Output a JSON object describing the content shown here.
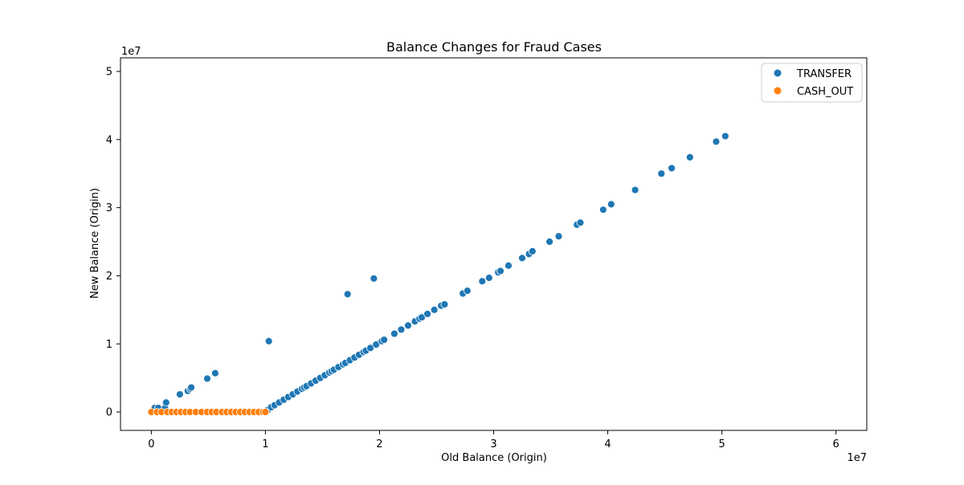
{
  "chart_data": {
    "type": "scatter",
    "title": "Balance Changes for Fraud Cases",
    "xlabel": "Old Balance (Origin)",
    "ylabel": "New Balance (Origin)",
    "x_scale_label": "1e7",
    "y_scale_label": "1e7",
    "xlim": [
      -0.27,
      6.27
    ],
    "ylim": [
      -0.27,
      5.2
    ],
    "x_ticks": [
      0,
      1,
      2,
      3,
      4,
      5,
      6
    ],
    "y_ticks": [
      0,
      1,
      2,
      3,
      4,
      5
    ],
    "tick_labels_x": [
      "0",
      "1",
      "2",
      "3",
      "4",
      "5",
      "6"
    ],
    "tick_labels_y": [
      "0",
      "1",
      "2",
      "3",
      "4",
      "5"
    ],
    "grid": false,
    "legend_position": "top-right",
    "units_note": "values in units of 1e7",
    "series": [
      {
        "name": "TRANSFER",
        "color": "#1f77b4",
        "points": [
          [
            0.03,
            0.06
          ],
          [
            0.06,
            0.06
          ],
          [
            0.12,
            0.06
          ],
          [
            0.13,
            0.14
          ],
          [
            0.25,
            0.26
          ],
          [
            0.32,
            0.31
          ],
          [
            0.34,
            0.34
          ],
          [
            0.35,
            0.36
          ],
          [
            0.49,
            0.49
          ],
          [
            0.56,
            0.57
          ],
          [
            1.03,
            1.04
          ],
          [
            1.72,
            1.73
          ],
          [
            1.95,
            1.96
          ],
          [
            1.02,
            0.03
          ],
          [
            1.05,
            0.07
          ],
          [
            1.08,
            0.1
          ],
          [
            1.12,
            0.14
          ],
          [
            1.16,
            0.18
          ],
          [
            1.2,
            0.22
          ],
          [
            1.24,
            0.26
          ],
          [
            1.28,
            0.3
          ],
          [
            1.32,
            0.34
          ],
          [
            1.34,
            0.36
          ],
          [
            1.36,
            0.38
          ],
          [
            1.4,
            0.42
          ],
          [
            1.44,
            0.46
          ],
          [
            1.48,
            0.5
          ],
          [
            1.52,
            0.54
          ],
          [
            1.56,
            0.58
          ],
          [
            1.58,
            0.6
          ],
          [
            1.6,
            0.62
          ],
          [
            1.64,
            0.66
          ],
          [
            1.68,
            0.7
          ],
          [
            1.7,
            0.72
          ],
          [
            1.74,
            0.76
          ],
          [
            1.78,
            0.8
          ],
          [
            1.82,
            0.84
          ],
          [
            1.86,
            0.88
          ],
          [
            1.88,
            0.9
          ],
          [
            1.92,
            0.94
          ],
          [
            1.97,
            0.99
          ],
          [
            2.02,
            1.04
          ],
          [
            2.04,
            1.06
          ],
          [
            2.13,
            1.15
          ],
          [
            2.19,
            1.21
          ],
          [
            2.25,
            1.27
          ],
          [
            2.31,
            1.33
          ],
          [
            2.35,
            1.37
          ],
          [
            2.37,
            1.39
          ],
          [
            2.42,
            1.44
          ],
          [
            2.48,
            1.5
          ],
          [
            2.54,
            1.56
          ],
          [
            2.57,
            1.58
          ],
          [
            2.73,
            1.74
          ],
          [
            2.77,
            1.78
          ],
          [
            2.9,
            1.92
          ],
          [
            2.96,
            1.97
          ],
          [
            3.04,
            2.05
          ],
          [
            3.06,
            2.07
          ],
          [
            3.13,
            2.15
          ],
          [
            3.25,
            2.26
          ],
          [
            3.31,
            2.32
          ],
          [
            3.34,
            2.36
          ],
          [
            3.49,
            2.5
          ],
          [
            3.57,
            2.58
          ],
          [
            3.73,
            2.75
          ],
          [
            3.76,
            2.78
          ],
          [
            3.96,
            2.97
          ],
          [
            4.03,
            3.05
          ],
          [
            4.24,
            3.26
          ],
          [
            4.47,
            3.5
          ],
          [
            4.56,
            3.58
          ],
          [
            4.72,
            3.74
          ],
          [
            4.95,
            3.97
          ],
          [
            5.03,
            4.05
          ]
        ]
      },
      {
        "name": "CASH_OUT",
        "color": "#ff7f0e",
        "points": [
          [
            0.0,
            0.0
          ],
          [
            0.05,
            0.0
          ],
          [
            0.09,
            0.0
          ],
          [
            0.14,
            0.0
          ],
          [
            0.18,
            0.0
          ],
          [
            0.22,
            0.0
          ],
          [
            0.26,
            0.0
          ],
          [
            0.3,
            0.0
          ],
          [
            0.34,
            0.0
          ],
          [
            0.39,
            0.0
          ],
          [
            0.44,
            0.0
          ],
          [
            0.49,
            0.0
          ],
          [
            0.53,
            0.0
          ],
          [
            0.57,
            0.0
          ],
          [
            0.62,
            0.0
          ],
          [
            0.66,
            0.0
          ],
          [
            0.7,
            0.0
          ],
          [
            0.74,
            0.0
          ],
          [
            0.78,
            0.0
          ],
          [
            0.82,
            0.0
          ],
          [
            0.86,
            0.0
          ],
          [
            0.9,
            0.0
          ],
          [
            0.94,
            0.0
          ],
          [
            0.98,
            0.0
          ],
          [
            1.0,
            0.0
          ]
        ]
      }
    ]
  }
}
